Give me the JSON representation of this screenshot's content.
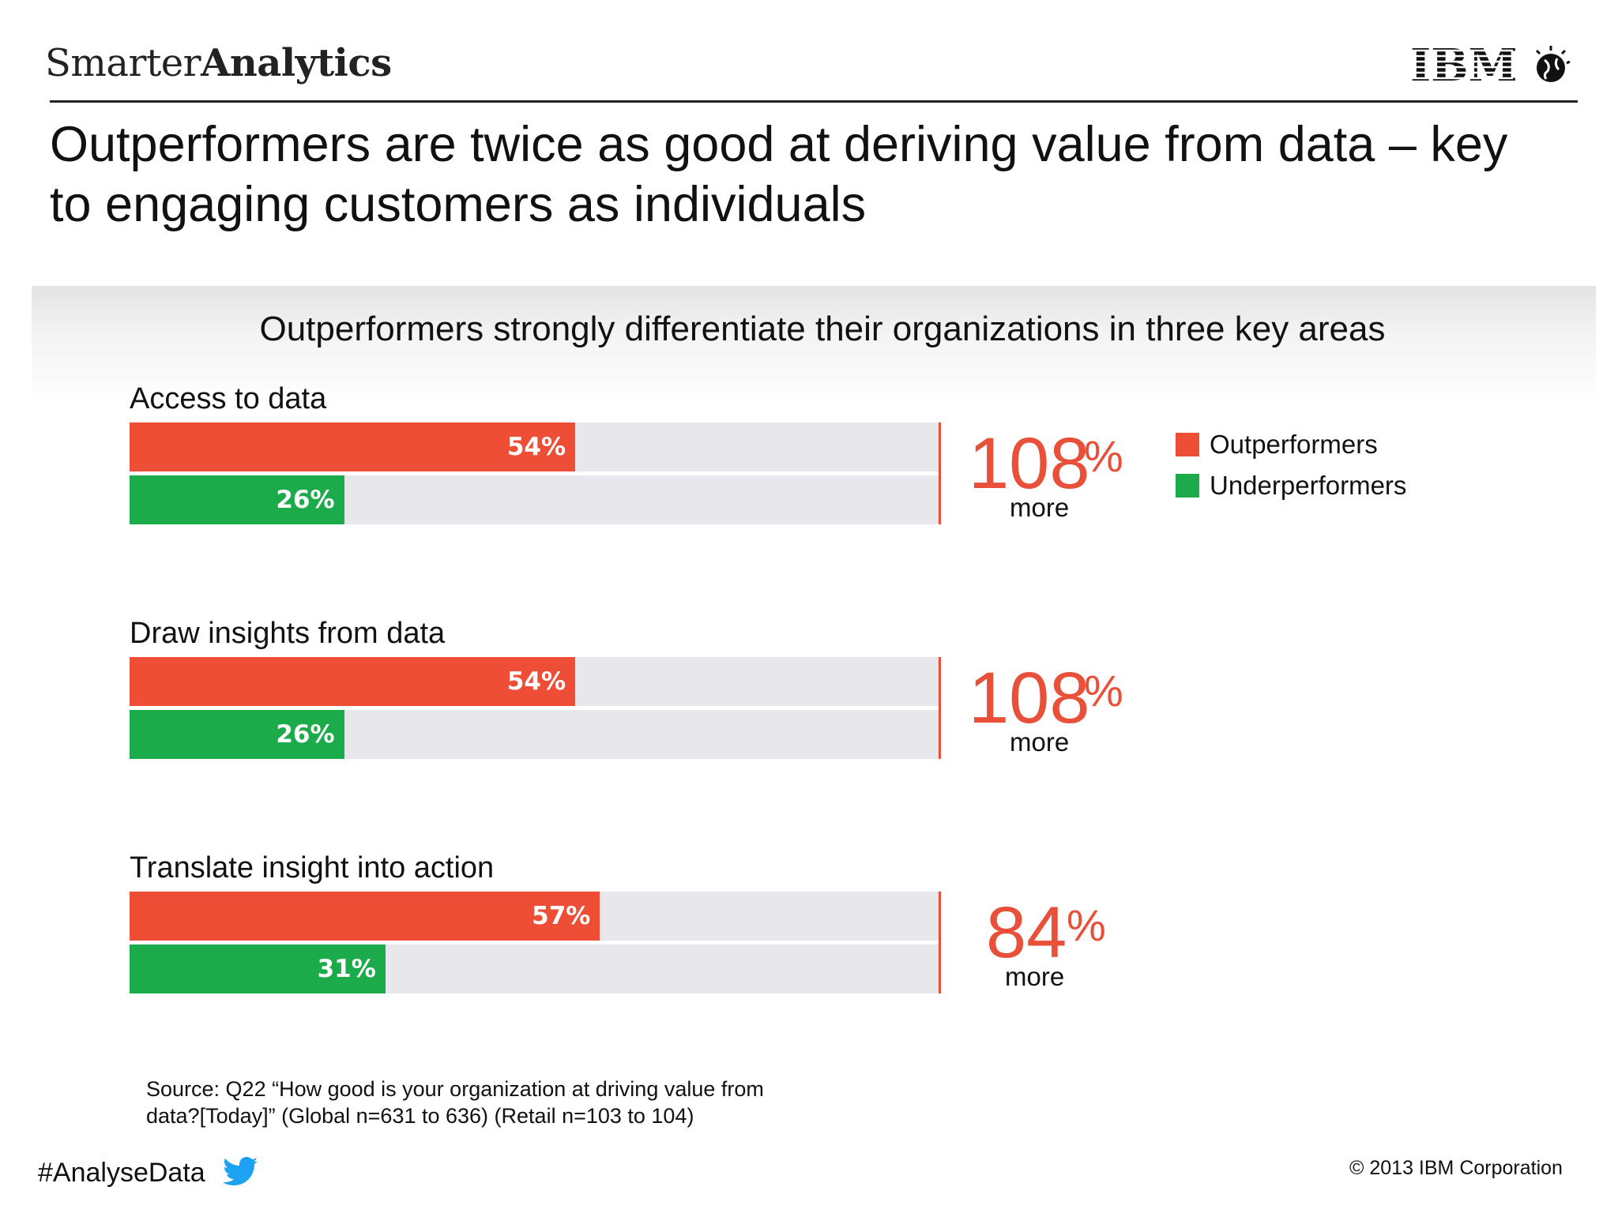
{
  "header": {
    "brand_prefix": "Smarter",
    "brand_suffix": "Analytics",
    "logo_text": "IBM",
    "title": "Outperformers are twice as good at deriving value from data – key to engaging customers as individuals"
  },
  "colors": {
    "outperformers": "#ee4d36",
    "underperformers": "#1cab4a",
    "track": "#e8e8ec",
    "accent": "#e8503a"
  },
  "chart_data": {
    "type": "bar",
    "orientation": "horizontal",
    "title": "Outperformers strongly differentiate their organizations in three key areas",
    "xlim": [
      0,
      100
    ],
    "unit": "%",
    "legend": {
      "placement": "top-right",
      "entries": [
        "Outperformers",
        "Underperformers"
      ]
    },
    "groups": [
      {
        "label": "Access to data",
        "outperformers": 54,
        "underperformers": 26,
        "outperformers_label": "54%",
        "underperformers_label": "26%",
        "diff_value": "108",
        "diff_unit": "%",
        "diff_word": "more"
      },
      {
        "label": "Draw insights from data",
        "outperformers": 54,
        "underperformers": 26,
        "outperformers_label": "54%",
        "underperformers_label": "26%",
        "diff_value": "108",
        "diff_unit": "%",
        "diff_word": "more"
      },
      {
        "label": "Translate insight into action",
        "outperformers": 57,
        "underperformers": 31,
        "outperformers_label": "57%",
        "underperformers_label": "31%",
        "diff_value": "84",
        "diff_unit": "%",
        "diff_word": "more"
      }
    ]
  },
  "footer": {
    "source_line1": "Source: Q22 “How good is your organization at driving value from",
    "source_line2": "data?[Today]” (Global n=631 to 636) (Retail n=103 to 104)",
    "hashtag": "#AnalyseData",
    "copyright": "© 2013 IBM Corporation"
  }
}
